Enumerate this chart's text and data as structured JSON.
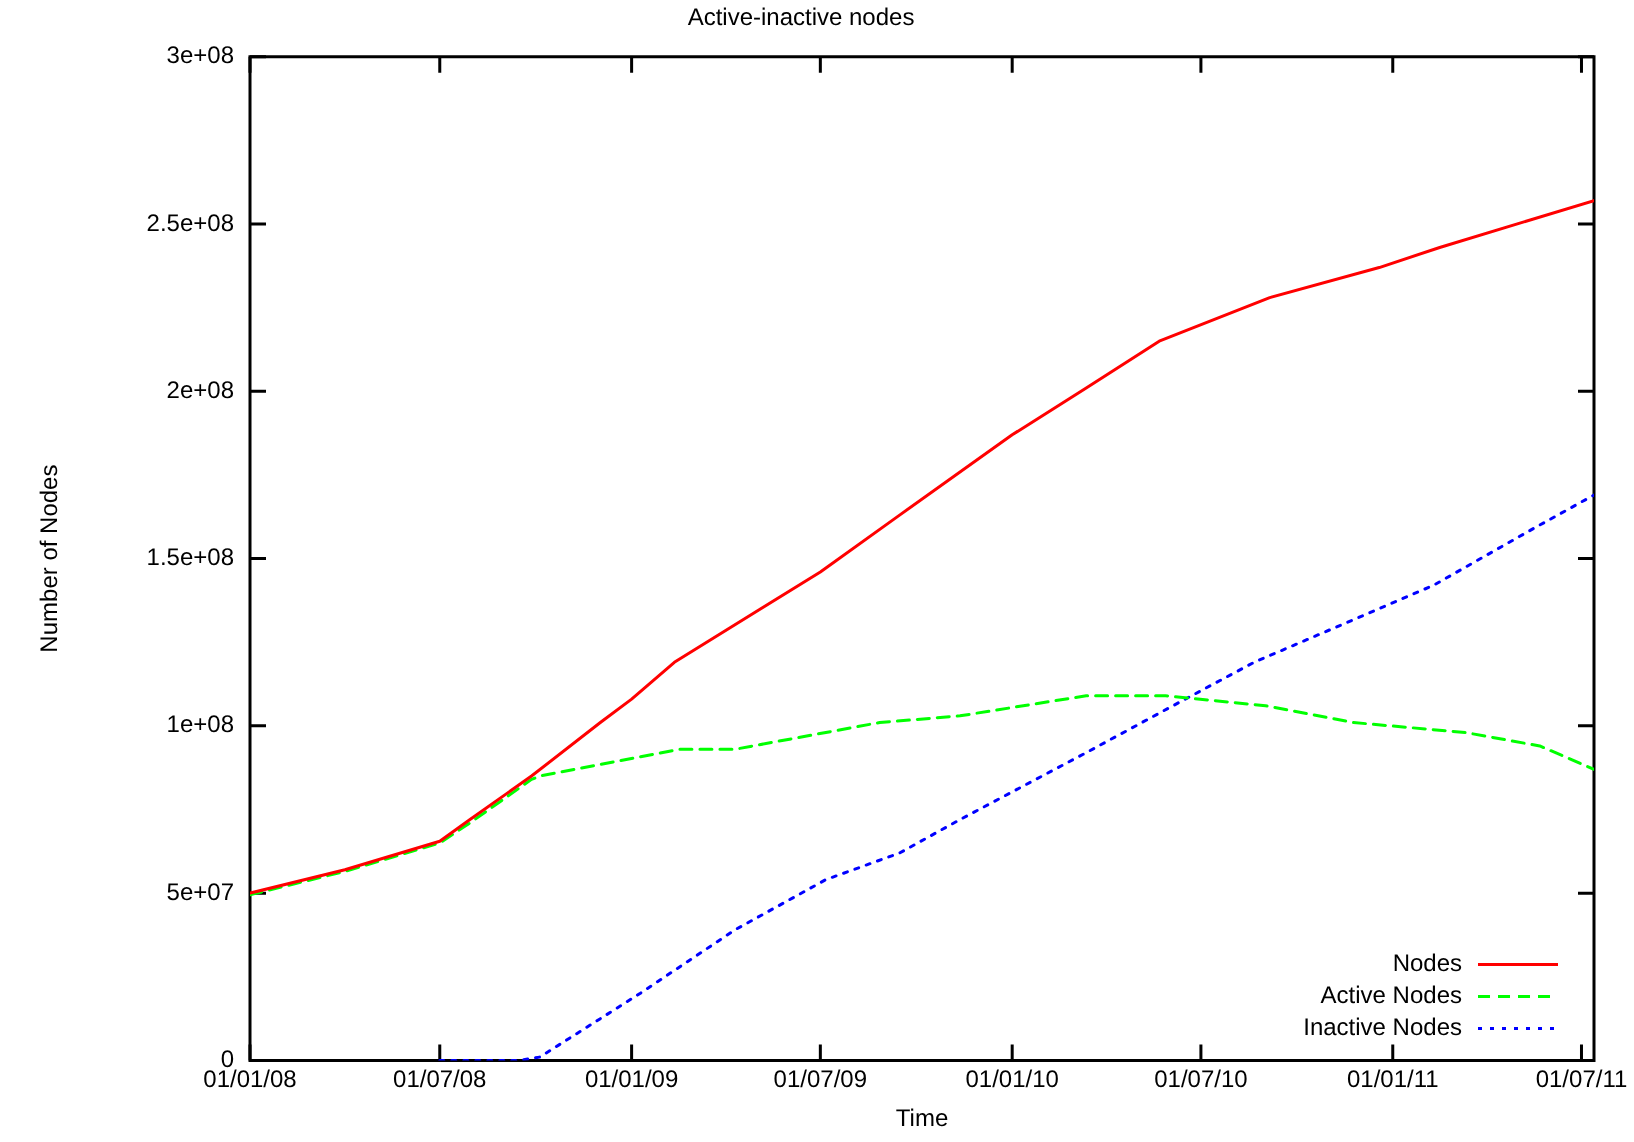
{
  "chart_data": {
    "type": "line",
    "title": "Active-inactive nodes",
    "xlabel": "Time",
    "ylabel": "Number of Nodes",
    "xlim": [
      "2008-01-01",
      "2011-07-13"
    ],
    "xticks": [
      {
        "value": "2008-01-01",
        "label": "01/01/08"
      },
      {
        "value": "2008-07-01",
        "label": "01/07/08"
      },
      {
        "value": "2009-01-01",
        "label": "01/01/09"
      },
      {
        "value": "2009-07-01",
        "label": "01/07/09"
      },
      {
        "value": "2010-01-01",
        "label": "01/01/10"
      },
      {
        "value": "2010-07-01",
        "label": "01/07/10"
      },
      {
        "value": "2011-01-01",
        "label": "01/01/11"
      },
      {
        "value": "2011-07-01",
        "label": "01/07/11"
      }
    ],
    "ylim": [
      0,
      300000000
    ],
    "yticks": [
      {
        "value": 0,
        "label": "0"
      },
      {
        "value": 50000000,
        "label": "5e+07"
      },
      {
        "value": 100000000,
        "label": "1e+08"
      },
      {
        "value": 150000000,
        "label": "1.5e+08"
      },
      {
        "value": 200000000,
        "label": "2e+08"
      },
      {
        "value": 250000000,
        "label": "2.5e+08"
      },
      {
        "value": 300000000,
        "label": "3e+08"
      }
    ],
    "grid": false,
    "legend": "bottom right",
    "marker": "none",
    "series": [
      {
        "name": "Nodes",
        "color": "#ff0000",
        "line_style": "solid",
        "x": [
          "2008-01-01",
          "2008-04-01",
          "2008-07-01",
          "2008-07-30",
          "2008-09-27",
          "2008-12-02",
          "2009-01-01",
          "2009-02-11",
          "2009-07-01",
          "2009-09-15",
          "2010-01-01",
          "2010-03-13",
          "2010-05-22",
          "2010-09-05",
          "2010-12-19",
          "2011-02-15",
          "2011-07-13"
        ],
        "values": [
          50000000,
          57000000,
          65500000,
          72000000,
          85000000,
          101000000,
          108000000,
          119000000,
          146000000,
          163000000,
          187000000,
          201000000,
          215000000,
          228000000,
          237000000,
          243000000,
          257000000
        ]
      },
      {
        "name": "Active Nodes",
        "color": "#00ff00",
        "line_style": "dashed",
        "x": [
          "2008-01-01",
          "2008-04-01",
          "2008-07-01",
          "2008-07-30",
          "2008-09-27",
          "2008-10-05",
          "2009-02-16",
          "2009-04-10",
          "2009-08-27",
          "2009-11-12",
          "2010-03-13",
          "2010-05-28",
          "2010-09-01",
          "2010-11-24",
          "2011-03-12",
          "2011-05-22",
          "2011-07-13"
        ],
        "values": [
          49500000,
          56500000,
          65000000,
          71000000,
          84000000,
          85000000,
          93000000,
          93000000,
          101000000,
          103000000,
          109000000,
          109000000,
          106000000,
          101000000,
          98000000,
          94000000,
          87000000
        ]
      },
      {
        "name": "Inactive Nodes",
        "color": "#0000ff",
        "line_style": "dotted",
        "x": [
          "2008-07-01",
          "2008-09-15",
          "2008-10-05",
          "2009-01-09",
          "2009-04-10",
          "2009-07-06",
          "2009-09-15",
          "2009-11-12",
          "2010-03-13",
          "2010-06-16",
          "2010-08-21",
          "2011-02-09",
          "2011-05-16",
          "2011-07-13"
        ],
        "values": [
          0,
          0,
          1000000,
          20000000,
          39000000,
          54000000,
          62000000,
          72000000,
          92000000,
          108000000,
          119000000,
          142000000,
          159000000,
          169000000
        ]
      }
    ]
  }
}
